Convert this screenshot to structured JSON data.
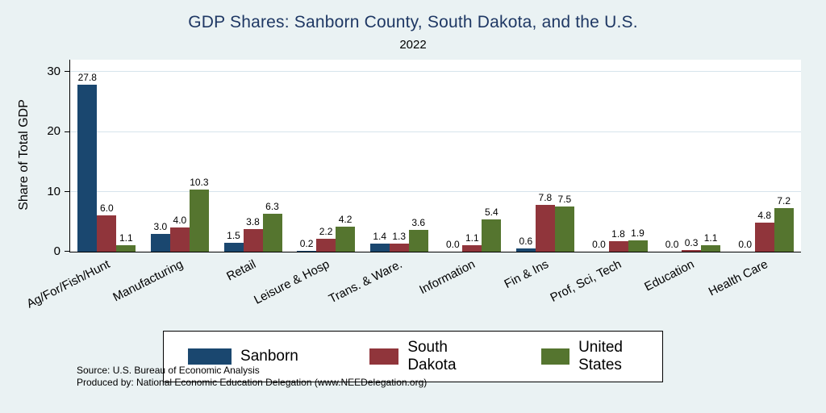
{
  "title": "GDP Shares: Sanborn County, South Dakota, and the U.S.",
  "subtitle": "2022",
  "ylabel": "Share of Total GDP",
  "footer": {
    "source_line": "Source: U.S. Bureau of Economic Analysis",
    "produced_line": "Produced by: National Economic Education Delegation (www.NEEDelegation.org)"
  },
  "colors": {
    "background": "#eaf2f3",
    "plot_background": "#ffffff",
    "title": "#1f3864",
    "gridline": "#d7e4ec",
    "axis": "#000000",
    "sanborn": "#1a476f",
    "south_dakota": "#90353b",
    "united_states": "#55752f"
  },
  "chart_data": {
    "type": "bar",
    "title": "GDP Shares: Sanborn County, South Dakota, and the U.S.",
    "subtitle": "2022",
    "xlabel": "",
    "ylabel": "Share of Total GDP",
    "ylim": [
      0,
      32
    ],
    "yticks": [
      0,
      10,
      20,
      30
    ],
    "grid": true,
    "legend_position": "bottom",
    "value_labels": true,
    "categories": [
      "Ag/For/Fish/Hunt",
      "Manufacturing",
      "Retail",
      "Leisure & Hosp",
      "Trans. & Ware.",
      "Information",
      "Fin & Ins",
      "Prof, Sci, Tech",
      "Education",
      "Health Care"
    ],
    "series": [
      {
        "name": "Sanborn",
        "color": "#1a476f",
        "values": [
          27.8,
          3.0,
          1.5,
          0.2,
          1.4,
          0.0,
          0.6,
          0.0,
          0.0,
          0.0
        ]
      },
      {
        "name": "South Dakota",
        "color": "#90353b",
        "values": [
          6.0,
          4.0,
          3.8,
          2.2,
          1.3,
          1.1,
          7.8,
          1.8,
          0.3,
          4.8
        ]
      },
      {
        "name": "United States",
        "color": "#55752f",
        "values": [
          1.1,
          10.3,
          6.3,
          4.2,
          3.6,
          5.4,
          7.5,
          1.9,
          1.1,
          7.2
        ]
      }
    ]
  }
}
